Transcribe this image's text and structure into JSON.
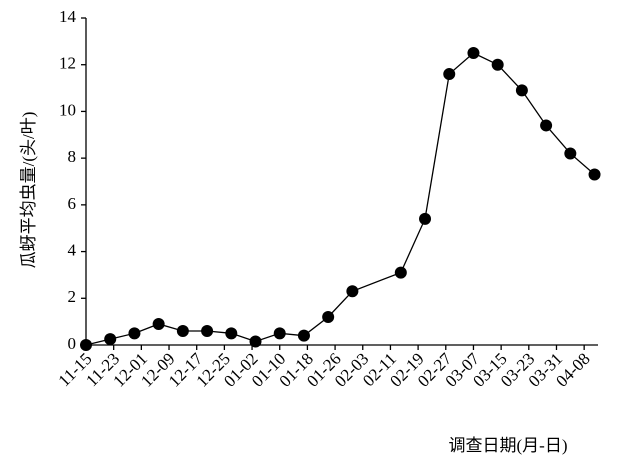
{
  "chart_data": {
    "type": "line",
    "x_label": "调查日期(月-日)",
    "y_label": "瓜蚜平均虫量/(头/叶)",
    "x": [
      "11-15",
      "11-22",
      "11-29",
      "12-06",
      "12-13",
      "12-20",
      "12-27",
      "01-03",
      "01-10",
      "01-17",
      "01-24",
      "01-31",
      "02-14",
      "02-21",
      "02-28",
      "03-07",
      "03-14",
      "03-21",
      "03-28",
      "04-04",
      "04-11"
    ],
    "values": [
      0,
      0.25,
      0.5,
      0.9,
      0.6,
      0.6,
      0.5,
      0.15,
      0.5,
      0.4,
      1.2,
      2.3,
      3.1,
      5.4,
      11.6,
      12.5,
      12.0,
      10.9,
      9.4,
      8.2,
      7.3
    ],
    "color": "#000000",
    "xlim": [
      "11-15",
      "04-12"
    ],
    "xticks": [
      "11-15",
      "11-23",
      "12-01",
      "12-09",
      "12-17",
      "12-25",
      "01-02",
      "01-10",
      "01-18",
      "01-26",
      "02-03",
      "02-11",
      "02-19",
      "02-27",
      "03-07",
      "03-15",
      "03-23",
      "03-31",
      "04-08"
    ],
    "ylim": [
      0,
      14
    ],
    "yticks": [
      0,
      2,
      4,
      6,
      8,
      10,
      12,
      14
    ],
    "grid": false
  }
}
